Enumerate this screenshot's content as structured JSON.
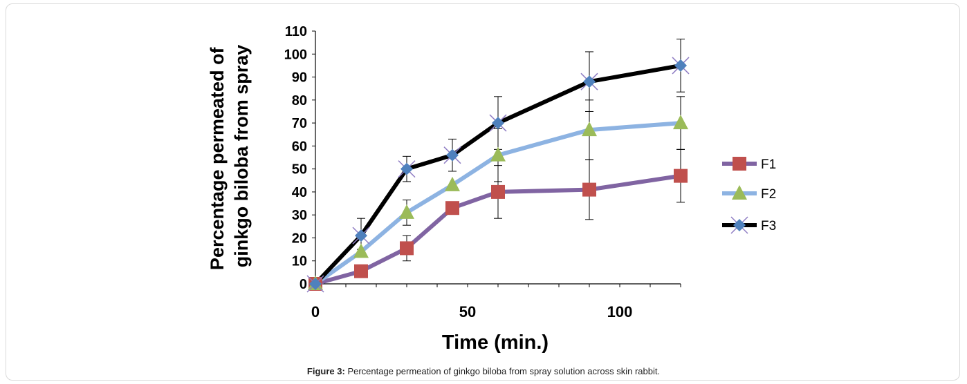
{
  "caption": {
    "label": "Figure 3:",
    "text": " Percentage permeation of ginkgo biloba from spray solution across skin rabbit."
  },
  "chart_data": {
    "type": "line",
    "title": "",
    "xlabel": "Time (min.)",
    "ylabel_lines": [
      "Percentage permeated of",
      "ginkgo biloba from spray"
    ],
    "xlim": [
      0,
      120
    ],
    "ylim": [
      0,
      110
    ],
    "xticks": [
      0,
      50,
      100
    ],
    "yticks": [
      0,
      10,
      20,
      30,
      40,
      50,
      60,
      70,
      80,
      90,
      100,
      110
    ],
    "x": [
      0,
      15,
      30,
      45,
      60,
      90,
      120
    ],
    "grid": false,
    "legend_position": "right",
    "series": [
      {
        "name": "F1",
        "line_color": "#8064A2",
        "marker": "square",
        "marker_color": "#C0504D",
        "values": [
          0,
          5.5,
          15.5,
          33,
          40,
          41,
          47
        ],
        "error": [
          0,
          1,
          5.5,
          0,
          11.5,
          13,
          11.5
        ]
      },
      {
        "name": "F2",
        "line_color": "#8DB3E2",
        "marker": "triangle",
        "marker_color": "#9BBB59",
        "values": [
          0,
          14,
          31,
          43,
          56,
          67,
          70
        ],
        "error": [
          0,
          1,
          5.5,
          0,
          11.5,
          13,
          11.5
        ]
      },
      {
        "name": "F3",
        "line_color": "#000000",
        "marker": "diamond",
        "marker_color": "#4F81BD",
        "values": [
          0,
          21,
          50,
          56,
          70,
          88,
          95
        ],
        "error": [
          0,
          7.5,
          5.5,
          7,
          11.5,
          13,
          11.5
        ]
      }
    ]
  }
}
